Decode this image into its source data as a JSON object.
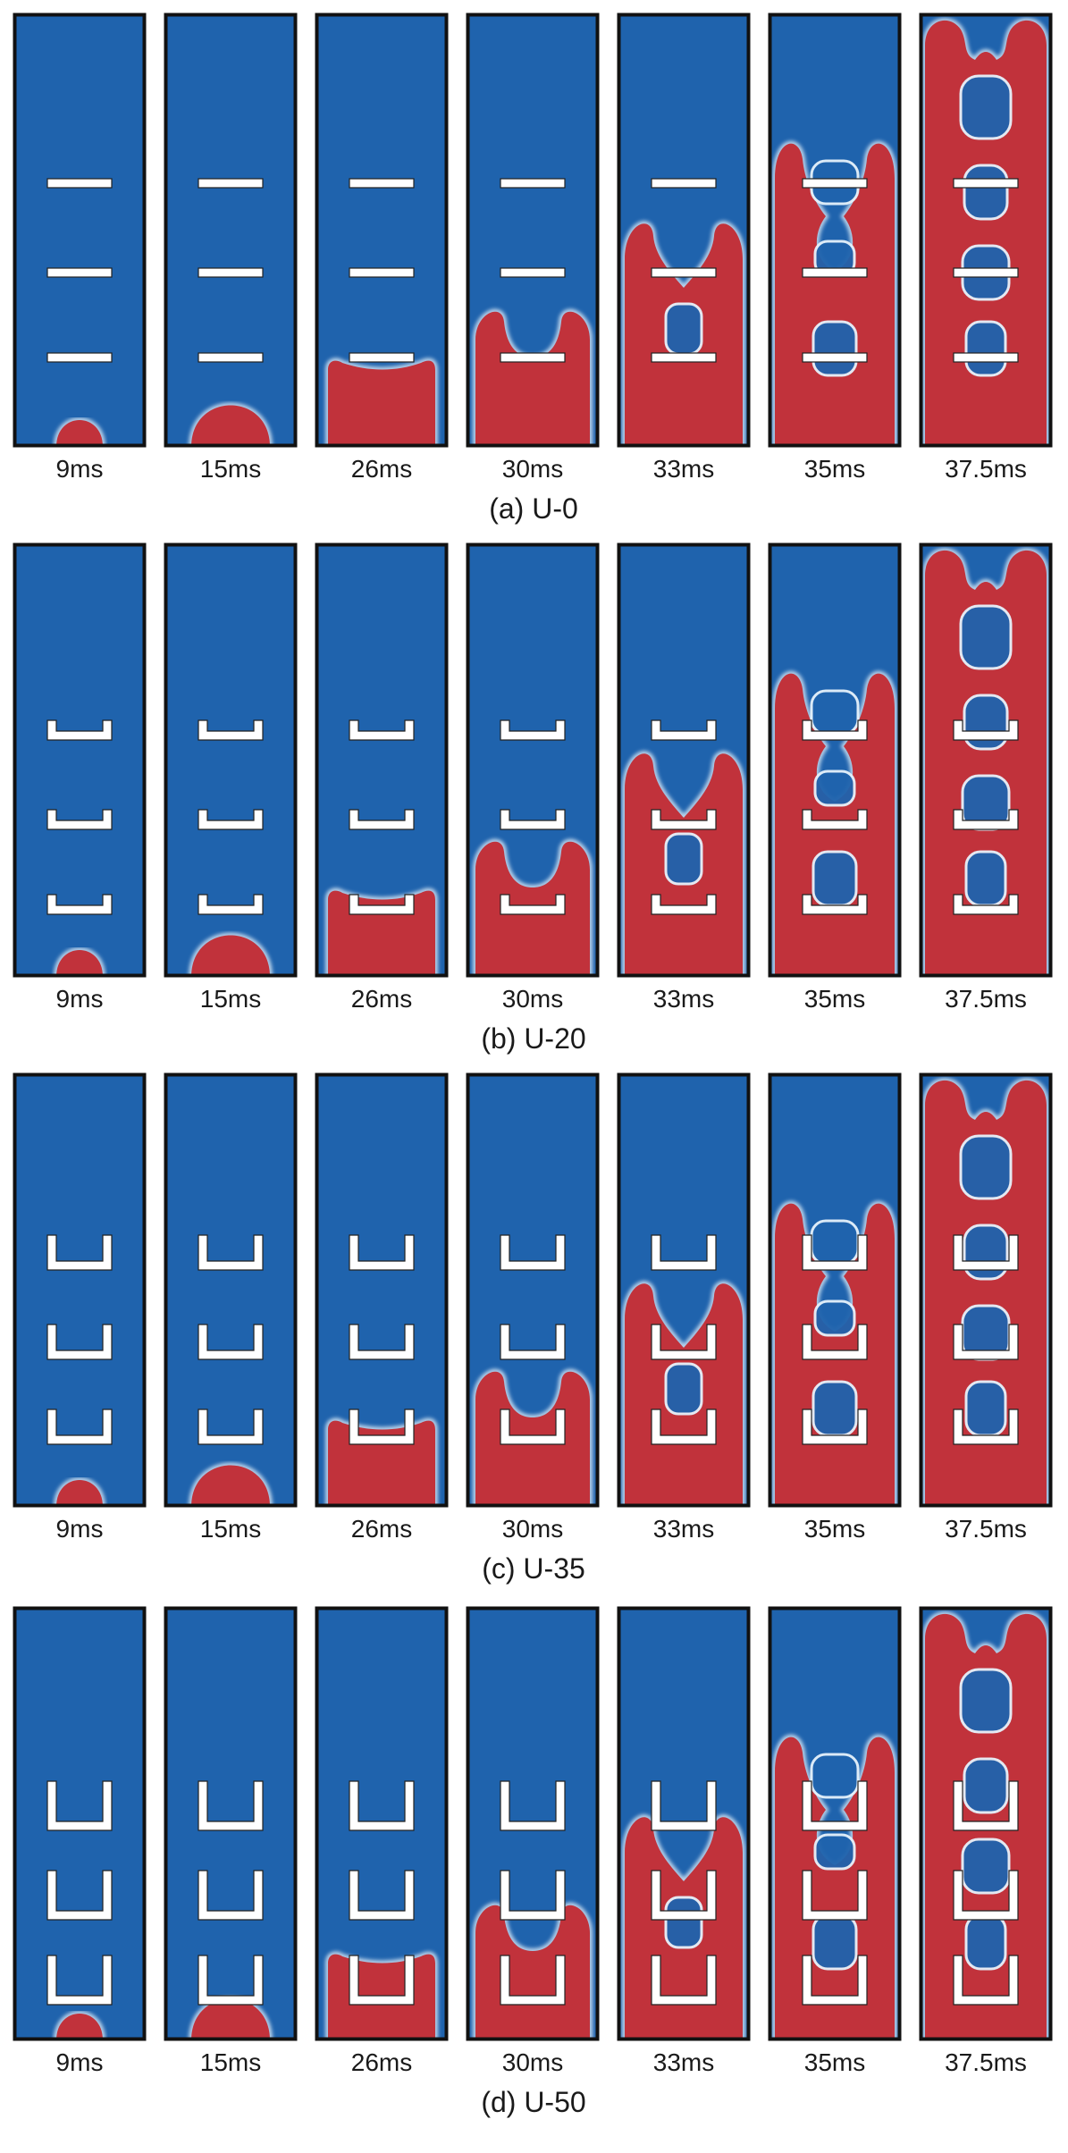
{
  "colors": {
    "liquid": "#1f63ad",
    "gas": "#c1323b",
    "obstacle": "#ffffff",
    "frame": "#111111",
    "interface": "#e6f2fb"
  },
  "time_labels": [
    "9ms",
    "15ms",
    "26ms",
    "30ms",
    "33ms",
    "35ms",
    "37.5ms"
  ],
  "rows": [
    {
      "caption": "(a) U-0",
      "obstacle": "U-0",
      "leg_fraction": 0.0
    },
    {
      "caption": "(b) U-20",
      "obstacle": "U-20",
      "leg_fraction": 0.2
    },
    {
      "caption": "(c) U-35",
      "obstacle": "U-35",
      "leg_fraction": 0.35
    },
    {
      "caption": "(d) U-50",
      "obstacle": "U-50",
      "leg_fraction": 0.5
    }
  ],
  "stages": [
    "bubble-small",
    "bubble-large",
    "slug-below",
    "slug-wrap-1",
    "slug-wrap-2",
    "slug-wrap-3",
    "slug-breakup"
  ]
}
